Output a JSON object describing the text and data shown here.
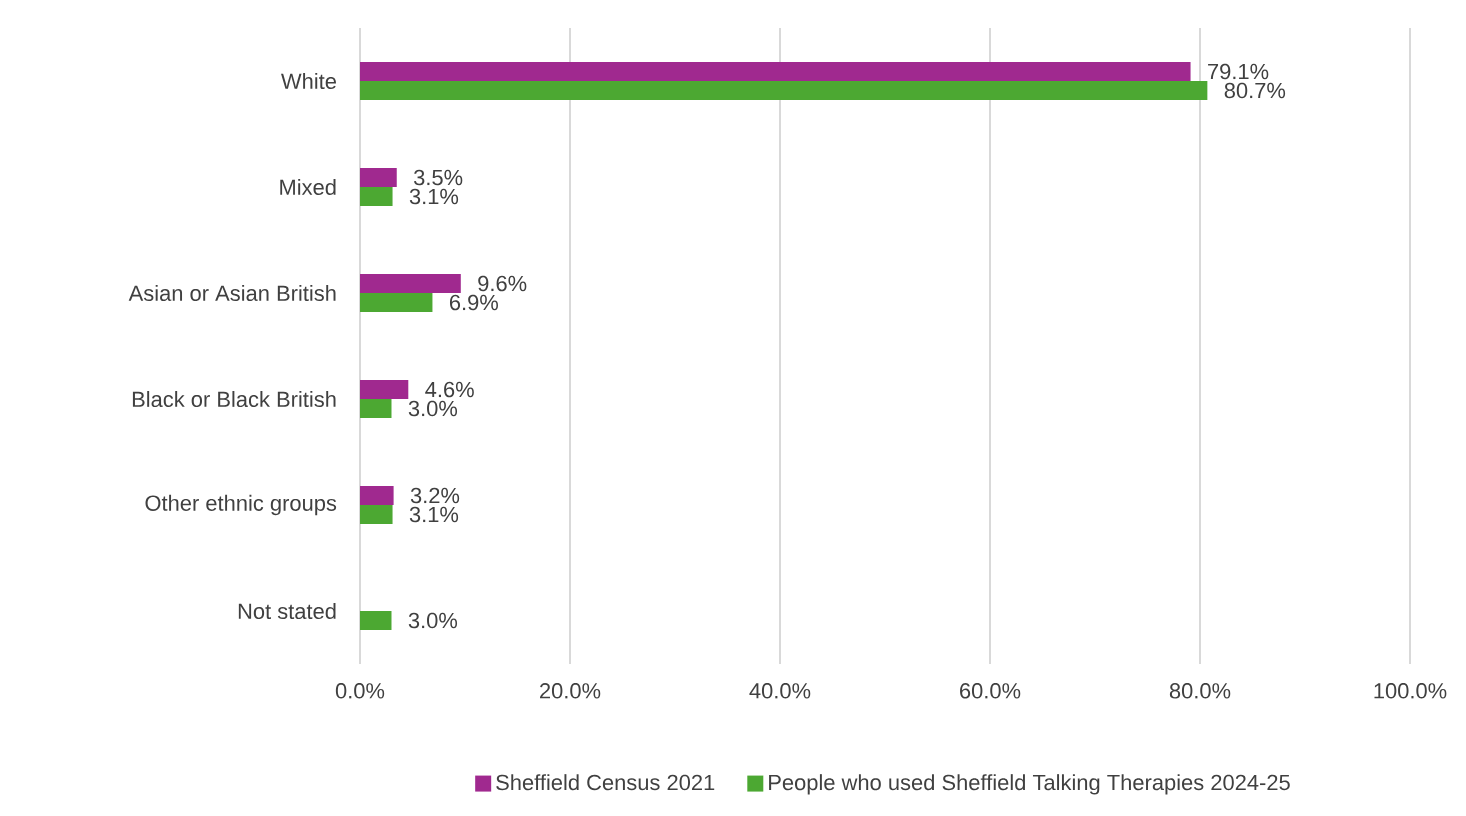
{
  "chart_data": {
    "type": "bar",
    "orientation": "horizontal",
    "categories": [
      "White",
      "Mixed",
      "Asian or Asian British",
      "Black or Black British",
      "Other ethnic groups",
      "Not stated"
    ],
    "series": [
      {
        "name": "Sheffield Census 2021",
        "color": "#a0298f",
        "values": [
          79.1,
          3.5,
          9.6,
          4.6,
          3.2,
          null
        ],
        "value_labels": [
          "79.1%",
          "3.5%",
          "9.6%",
          "4.6%",
          "3.2%",
          null
        ]
      },
      {
        "name": "People who used Sheffield Talking Therapies 2024-25",
        "color": "#4ca832",
        "values": [
          80.7,
          3.1,
          6.9,
          3.0,
          3.1,
          3.0
        ],
        "value_labels": [
          "80.7%",
          "3.1%",
          "6.9%",
          "3.0%",
          "3.1%",
          "3.0%"
        ]
      }
    ],
    "xlim": [
      0,
      100
    ],
    "xticks": [
      {
        "value": 0,
        "label": "0.0%"
      },
      {
        "value": 20,
        "label": "20.0%"
      },
      {
        "value": 40,
        "label": "40.0%"
      },
      {
        "value": 60,
        "label": "60.0%"
      },
      {
        "value": 80,
        "label": "80.0%"
      },
      {
        "value": 100,
        "label": "100.0%"
      }
    ],
    "grid": "x",
    "legend": "bottom"
  }
}
